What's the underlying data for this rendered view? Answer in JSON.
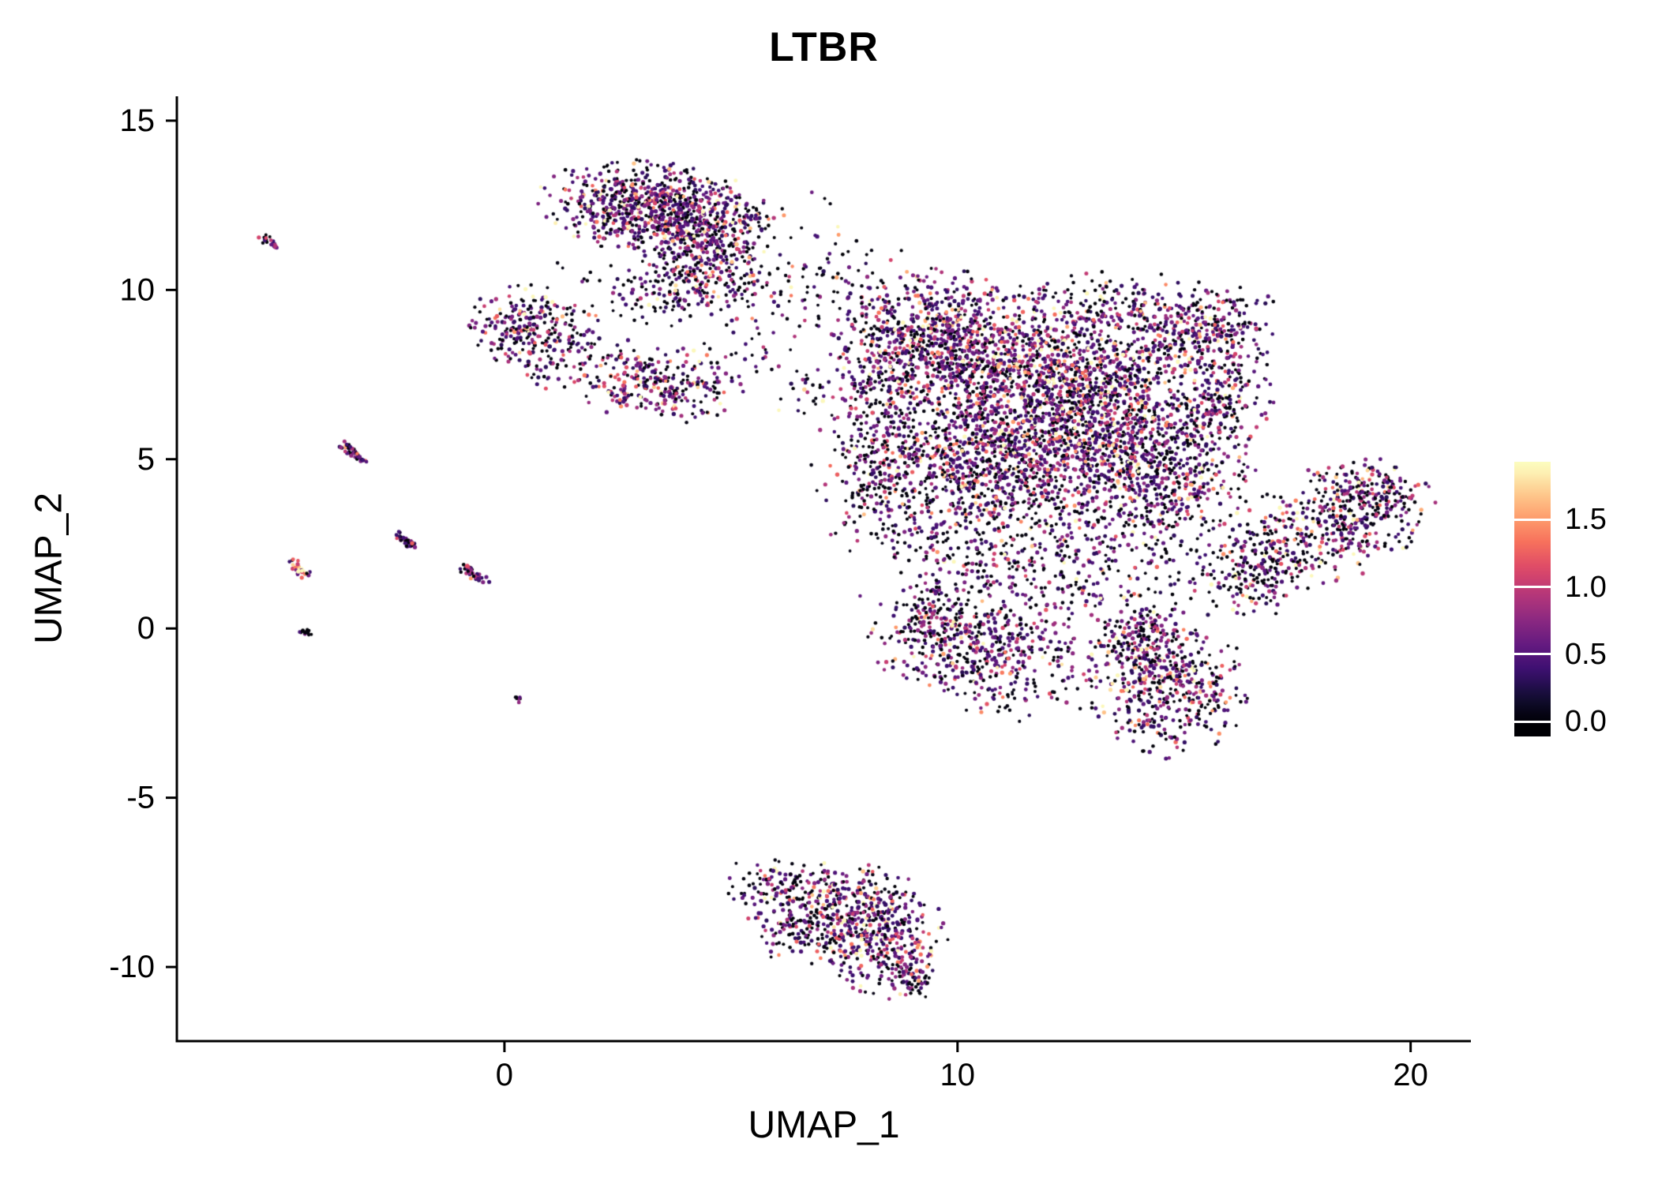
{
  "title": "LTBR",
  "x_axis": {
    "label": "UMAP_1",
    "tick_values": [
      0,
      10,
      20
    ],
    "tick_labels": [
      "0",
      "10",
      "20"
    ],
    "domain": [
      -7.23,
      21.33
    ]
  },
  "y_axis": {
    "label": "UMAP_2",
    "tick_values": [
      -10,
      -5,
      0,
      5,
      10,
      15
    ],
    "tick_labels": [
      "-10",
      "-5",
      "0",
      "5",
      "10",
      "15"
    ],
    "domain": [
      -12.19,
      15.72
    ]
  },
  "legend": {
    "tick_values": [
      0.0,
      0.5,
      1.0,
      1.5
    ],
    "tick_labels": [
      "0.0",
      "0.5",
      "1.0",
      "1.5"
    ],
    "bar_domain": [
      -0.11,
      1.93
    ],
    "value_min": 0.0,
    "value_max": 1.9
  },
  "colors": {
    "background": "#ffffff",
    "axis": "#000000",
    "text": "#000000",
    "colorbar_tick": "#ffffff",
    "magma_stops": [
      [
        0.0,
        "#000004"
      ],
      [
        0.1,
        "#140e36"
      ],
      [
        0.2,
        "#3b0f70"
      ],
      [
        0.3,
        "#641a80"
      ],
      [
        0.4,
        "#8c2981"
      ],
      [
        0.5,
        "#b73779"
      ],
      [
        0.6,
        "#de4968"
      ],
      [
        0.7,
        "#f7705c"
      ],
      [
        0.8,
        "#fe9f6d"
      ],
      [
        0.9,
        "#fece91"
      ],
      [
        1.0,
        "#fcfdbf"
      ]
    ]
  },
  "chart_data": {
    "type": "scatter",
    "title": "LTBR",
    "xlabel": "UMAP_1",
    "ylabel": "UMAP_2",
    "xlim": [
      -7.23,
      21.33
    ],
    "ylim": [
      -12.19,
      15.72
    ],
    "color_scale": {
      "name": "magma",
      "min": 0.0,
      "max": 1.9,
      "legend_ticks": [
        0.0,
        0.5,
        1.0,
        1.5
      ]
    },
    "seed": 42,
    "point_radius_px": 2.3,
    "clusters": {
      "param_order_gauss": [
        "cx",
        "cy",
        "sx",
        "sy",
        "rot_deg",
        "n",
        "zero_frac",
        "intensity_scale"
      ],
      "param_order_streak": [
        "x1",
        "y1",
        "x2",
        "y2",
        "jitter",
        "n",
        "zero_frac",
        "intensity_scale"
      ],
      "gauss": [
        [
          3.3,
          12.4,
          1.15,
          0.62,
          -8,
          780,
          0.3,
          0.5
        ],
        [
          4.4,
          11.2,
          0.7,
          0.85,
          0,
          300,
          0.32,
          0.5
        ],
        [
          4.0,
          10.0,
          1.0,
          0.5,
          0,
          120,
          0.45,
          0.42
        ],
        [
          6.3,
          10.8,
          1.2,
          0.95,
          0,
          70,
          0.5,
          0.45
        ],
        [
          0.45,
          8.9,
          0.55,
          0.62,
          0,
          210,
          0.35,
          0.45
        ],
        [
          1.6,
          8.35,
          0.6,
          0.33,
          -15,
          50,
          0.45,
          0.42
        ],
        [
          0.9,
          7.6,
          0.35,
          0.25,
          0,
          25,
          0.45,
          0.4
        ],
        [
          3.4,
          7.2,
          0.85,
          0.5,
          -5,
          290,
          0.3,
          0.5
        ],
        [
          9.3,
          8.6,
          0.95,
          1.0,
          0,
          560,
          0.33,
          0.5
        ],
        [
          11.3,
          7.6,
          1.4,
          1.2,
          0,
          1000,
          0.3,
          0.52
        ],
        [
          13.3,
          6.6,
          1.25,
          1.15,
          0,
          820,
          0.3,
          0.52
        ],
        [
          12.0,
          5.0,
          1.7,
          1.0,
          0,
          700,
          0.32,
          0.5
        ],
        [
          9.9,
          4.6,
          1.1,
          0.9,
          0,
          430,
          0.35,
          0.48
        ],
        [
          14.6,
          4.2,
          0.9,
          0.9,
          0,
          330,
          0.33,
          0.5
        ],
        [
          12.3,
          2.6,
          1.6,
          0.8,
          0,
          230,
          0.45,
          0.45
        ],
        [
          15.2,
          8.8,
          0.9,
          0.55,
          20,
          260,
          0.35,
          0.5
        ],
        [
          15.9,
          6.9,
          0.5,
          1.1,
          0,
          220,
          0.35,
          0.5
        ],
        [
          8.2,
          6.5,
          0.5,
          1.3,
          0,
          180,
          0.4,
          0.46
        ],
        [
          7.9,
          4.6,
          0.5,
          1.1,
          0,
          85,
          0.5,
          0.42
        ],
        [
          13.6,
          9.6,
          1.0,
          0.45,
          0,
          150,
          0.4,
          0.46
        ],
        [
          16.5,
          1.7,
          0.7,
          0.6,
          32,
          190,
          0.45,
          0.5
        ],
        [
          18.3,
          3.1,
          1.1,
          0.75,
          33,
          460,
          0.4,
          0.55
        ],
        [
          19.3,
          4.1,
          0.4,
          0.5,
          32,
          80,
          0.35,
          0.6
        ],
        [
          10.5,
          -0.5,
          1.15,
          0.75,
          -10,
          430,
          0.35,
          0.5
        ],
        [
          9.4,
          0.2,
          0.4,
          0.55,
          0,
          80,
          0.4,
          0.45
        ],
        [
          14.6,
          -1.6,
          0.8,
          1.0,
          15,
          480,
          0.32,
          0.55
        ],
        [
          13.9,
          -0.3,
          0.5,
          0.5,
          0,
          120,
          0.4,
          0.46
        ],
        [
          12.3,
          1.2,
          2.0,
          0.7,
          0,
          160,
          0.5,
          0.45
        ],
        [
          10.1,
          1.9,
          0.8,
          0.8,
          0,
          90,
          0.5,
          0.42
        ],
        [
          7.2,
          -7.9,
          1.1,
          0.5,
          -14,
          310,
          0.35,
          0.55
        ],
        [
          8.3,
          -9.3,
          0.65,
          0.75,
          0,
          330,
          0.3,
          0.55
        ],
        [
          6.7,
          -8.9,
          0.6,
          0.5,
          0,
          120,
          0.45,
          0.45
        ],
        [
          9.0,
          -10.2,
          0.3,
          0.35,
          0,
          60,
          0.35,
          0.5
        ],
        [
          5.9,
          10.4,
          1.2,
          0.9,
          0,
          55,
          0.5,
          0.45
        ],
        [
          2.1,
          9.7,
          0.8,
          0.6,
          0,
          35,
          0.5,
          0.42
        ],
        [
          6.8,
          6.9,
          0.45,
          0.4,
          0,
          30,
          0.45,
          0.45
        ],
        [
          5.3,
          8.2,
          0.5,
          0.4,
          0,
          20,
          0.5,
          0.42
        ],
        [
          7.5,
          9.9,
          0.7,
          0.8,
          0,
          40,
          0.5,
          0.45
        ],
        [
          8.7,
          2.9,
          0.5,
          0.8,
          0,
          50,
          0.5,
          0.45
        ],
        [
          11.4,
          -2.0,
          0.8,
          0.4,
          0,
          50,
          0.5,
          0.45
        ]
      ],
      "streak": [
        [
          -5.3,
          11.55,
          -5.0,
          11.25,
          0.05,
          25,
          0.3,
          0.45
        ],
        [
          -3.55,
          5.45,
          -3.15,
          5.0,
          0.06,
          45,
          0.3,
          0.45
        ],
        [
          -2.3,
          2.75,
          -2.0,
          2.4,
          0.06,
          35,
          0.35,
          0.45
        ],
        [
          -0.9,
          1.8,
          -0.45,
          1.4,
          0.07,
          45,
          0.4,
          0.4
        ],
        [
          -4.65,
          1.95,
          -4.4,
          1.55,
          0.06,
          30,
          0.1,
          0.9
        ],
        [
          -4.5,
          -0.05,
          -4.3,
          -0.18,
          0.05,
          14,
          0.85,
          0.2
        ],
        [
          0.25,
          -2.05,
          0.35,
          -2.15,
          0.04,
          8,
          0.5,
          0.35
        ]
      ]
    }
  }
}
